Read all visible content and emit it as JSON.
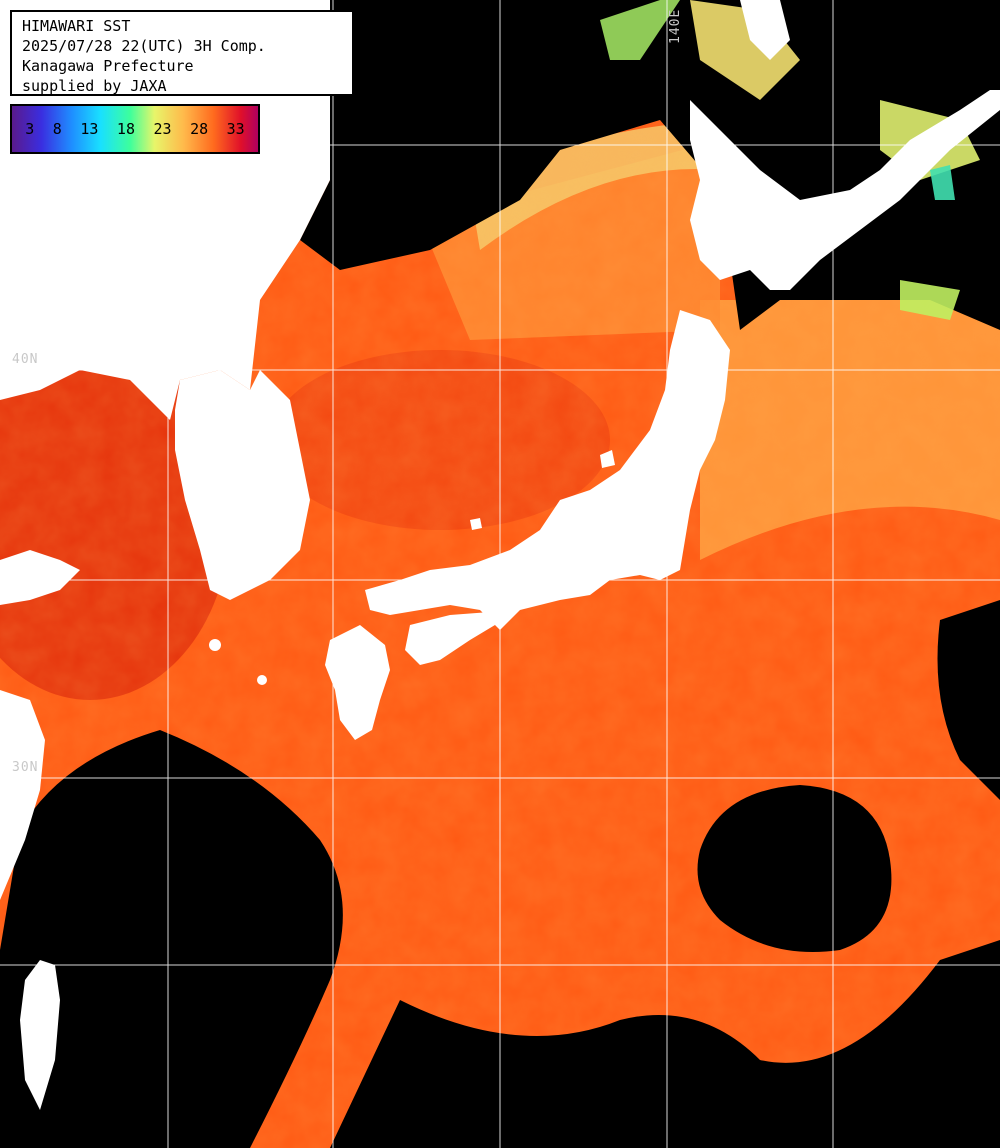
{
  "header": {
    "line1": "HIMAWARI SST",
    "line2": "2025/07/28 22(UTC) 3H Comp.",
    "line3": "Kanagawa Prefecture",
    "line4": "supplied by JAXA"
  },
  "colorbar": {
    "ticks": [
      "3",
      "8",
      "13",
      "18",
      "23",
      "28",
      "33"
    ],
    "colors": [
      "#5a1a8c",
      "#3a2ee0",
      "#1f8cff",
      "#19e0ff",
      "#3dff9c",
      "#e8f56a",
      "#ffb84a",
      "#ff6a1e",
      "#e0102a",
      "#b00060"
    ]
  },
  "grid_labels": {
    "lon_140e": "140E",
    "lat_40n": "40N",
    "lat_30n": "30N"
  },
  "map_colors": {
    "ocean_warm": "#ff5a14",
    "ocean_hot": "#e02a0a",
    "ocean_cool": "#ff9a3c",
    "ocean_cold": "#f5e070",
    "land": "#ffffff",
    "cloud": "#000000",
    "grid": "#ffffff"
  }
}
